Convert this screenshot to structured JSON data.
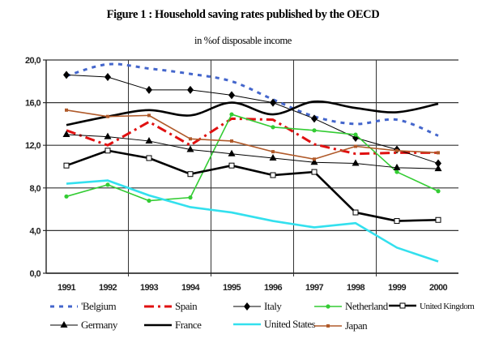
{
  "chart_data": {
    "type": "line",
    "title": "Figure 1 : Household saving rates published by the OECD",
    "subtitle": "in %of disposable income",
    "xlabel": "",
    "ylabel": "",
    "x": [
      "1991",
      "1992",
      "1993",
      "1994",
      "1995",
      "1996",
      "1997",
      "1998",
      "1999",
      "2000"
    ],
    "ylim": [
      0,
      20
    ],
    "yticks": [
      "0,0",
      "4,0",
      "8,0",
      "12,0",
      "16,0",
      "20,0"
    ],
    "ytick_values": [
      0,
      4,
      8,
      12,
      16,
      20
    ],
    "grid": "horizontal at each y tick; vertical every two years",
    "legend_position": "bottom",
    "series": [
      {
        "name": "Belgium",
        "legend_label": "'Belgium",
        "color": "#4466cc",
        "style": "dotted",
        "marker": "none",
        "values": [
          18.5,
          19.6,
          19.2,
          18.7,
          18.0,
          16.3,
          14.7,
          14.0,
          14.4,
          12.9
        ]
      },
      {
        "name": "Spain",
        "legend_label": "Spain",
        "color": "#e01010",
        "style": "dashdot",
        "marker": "none",
        "values": [
          13.4,
          12.0,
          14.2,
          12.0,
          14.5,
          14.4,
          12.1,
          11.2,
          11.3,
          11.3
        ]
      },
      {
        "name": "Italy",
        "legend_label": "Italy",
        "color": "#000000",
        "style": "solid-thin",
        "marker": "diamond",
        "values": [
          18.6,
          18.4,
          17.2,
          17.2,
          16.7,
          16.0,
          14.5,
          12.7,
          11.6,
          10.3
        ]
      },
      {
        "name": "Netherland",
        "legend_label": "Netherland",
        "color": "#33cc33",
        "style": "solid",
        "marker": "dot",
        "values": [
          7.2,
          8.3,
          6.8,
          7.1,
          14.9,
          13.7,
          13.4,
          13.0,
          9.5,
          7.7
        ]
      },
      {
        "name": "United Kingdom",
        "legend_label": "United Kingdom",
        "color": "#000000",
        "style": "solid-thick",
        "marker": "square",
        "values": [
          10.1,
          11.5,
          10.8,
          9.3,
          10.1,
          9.2,
          9.5,
          5.7,
          4.9,
          5.0
        ]
      },
      {
        "name": "Germany",
        "legend_label": "Germany",
        "color": "#000000",
        "style": "solid-thin",
        "marker": "triangle",
        "values": [
          13.0,
          12.8,
          12.4,
          11.6,
          11.2,
          10.8,
          10.4,
          10.3,
          9.9,
          9.8
        ]
      },
      {
        "name": "France",
        "legend_label": "France",
        "color": "#000000",
        "style": "solid-thick",
        "marker": "none",
        "values": [
          13.9,
          14.7,
          15.3,
          14.8,
          16.0,
          14.9,
          16.1,
          15.5,
          15.1,
          15.9
        ]
      },
      {
        "name": "United States",
        "legend_label": "United States",
        "color": "#33e0ee",
        "style": "solid-thick",
        "marker": "none",
        "values": [
          8.4,
          8.7,
          7.3,
          6.2,
          5.7,
          4.9,
          4.3,
          4.7,
          2.4,
          1.1
        ]
      },
      {
        "name": "Japan",
        "legend_label": "Japan",
        "color": "#b05a2a",
        "style": "solid",
        "marker": "small-square",
        "values": [
          15.3,
          14.7,
          14.8,
          12.6,
          12.4,
          11.4,
          10.7,
          11.9,
          11.5,
          11.3
        ]
      }
    ]
  }
}
